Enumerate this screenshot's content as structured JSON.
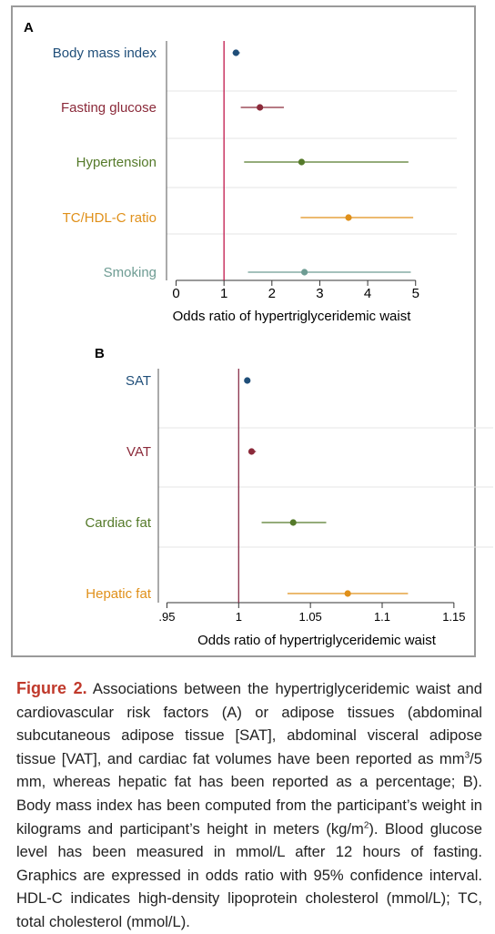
{
  "colors": {
    "blue": "#1f4e79",
    "red": "#8b2a3a",
    "green": "#557a2a",
    "orange": "#e0901a",
    "teal": "#6e9c93",
    "ref_line": "#c0174a",
    "ref_line_b": "#8a2f4a",
    "caption_label": "#c0392b"
  },
  "chart_data": [
    {
      "panel": "A",
      "type": "forest",
      "xlabel": "Odds ratio of hypertriglyceridemic waist",
      "xlim": [
        -0.2,
        5.1
      ],
      "xticks": [
        0,
        1,
        2,
        3,
        4,
        5
      ],
      "xtick_labels": [
        "0",
        "1",
        "2",
        "3",
        "4",
        "5"
      ],
      "reference": 1,
      "grid": "horizontal",
      "items": [
        {
          "label": "Body mass index",
          "or": 1.25,
          "lo": 1.18,
          "hi": 1.33,
          "color": "blue"
        },
        {
          "label": "Fasting glucose",
          "or": 1.75,
          "lo": 1.35,
          "hi": 2.25,
          "color": "red"
        },
        {
          "label": "Hypertension",
          "or": 2.62,
          "lo": 1.42,
          "hi": 4.85,
          "color": "green"
        },
        {
          "label": "TC/HDL-C ratio",
          "or": 3.6,
          "lo": 2.6,
          "hi": 4.95,
          "color": "orange"
        },
        {
          "label": "Smoking",
          "or": 2.68,
          "lo": 1.5,
          "hi": 4.9,
          "color": "teal"
        }
      ]
    },
    {
      "panel": "B",
      "type": "forest",
      "xlabel": "Odds ratio of hypertriglyceridemic waist",
      "xlim": [
        0.944,
        1.152
      ],
      "xticks": [
        0.95,
        1,
        1.05,
        1.1,
        1.15
      ],
      "xtick_labels": [
        ".95",
        "1",
        "1.05",
        "1.1",
        "1.15"
      ],
      "reference": 1,
      "grid": "horizontal",
      "items": [
        {
          "label": "SAT",
          "or": 1.006,
          "lo": 1.004,
          "hi": 1.008,
          "color": "blue"
        },
        {
          "label": "VAT",
          "or": 1.009,
          "lo": 1.007,
          "hi": 1.012,
          "color": "red"
        },
        {
          "label": "Cardiac fat",
          "or": 1.038,
          "lo": 1.016,
          "hi": 1.061,
          "color": "green"
        },
        {
          "label": "Hepatic fat",
          "or": 1.076,
          "lo": 1.034,
          "hi": 1.118,
          "color": "orange"
        }
      ]
    }
  ],
  "caption": {
    "label": "Figure 2.",
    "p1": " Associations between the hypertriglyceridemic waist and cardiovascular risk factors (A) or adipose tissues (abdominal subcutaneous adipose tissue [SAT], abdominal visceral adipose tissue [VAT], and cardiac fat volumes have been reported as mm",
    "sup1": "3",
    "p2": "/5 mm, whereas hepatic fat has been reported as a percentage; B). Body mass index has been computed from the participant’s weight in kilograms and participant’s height in meters (kg/m",
    "sup2": "2",
    "p3": "). Blood glucose level has been measured in mmol/L after 12 hours of fasting. Graphics are expressed in odds ratio with 95% confidence interval. HDL-C indicates high-density lipoprotein cholesterol (mmol/L); TC, total cholesterol (mmol/L)."
  }
}
